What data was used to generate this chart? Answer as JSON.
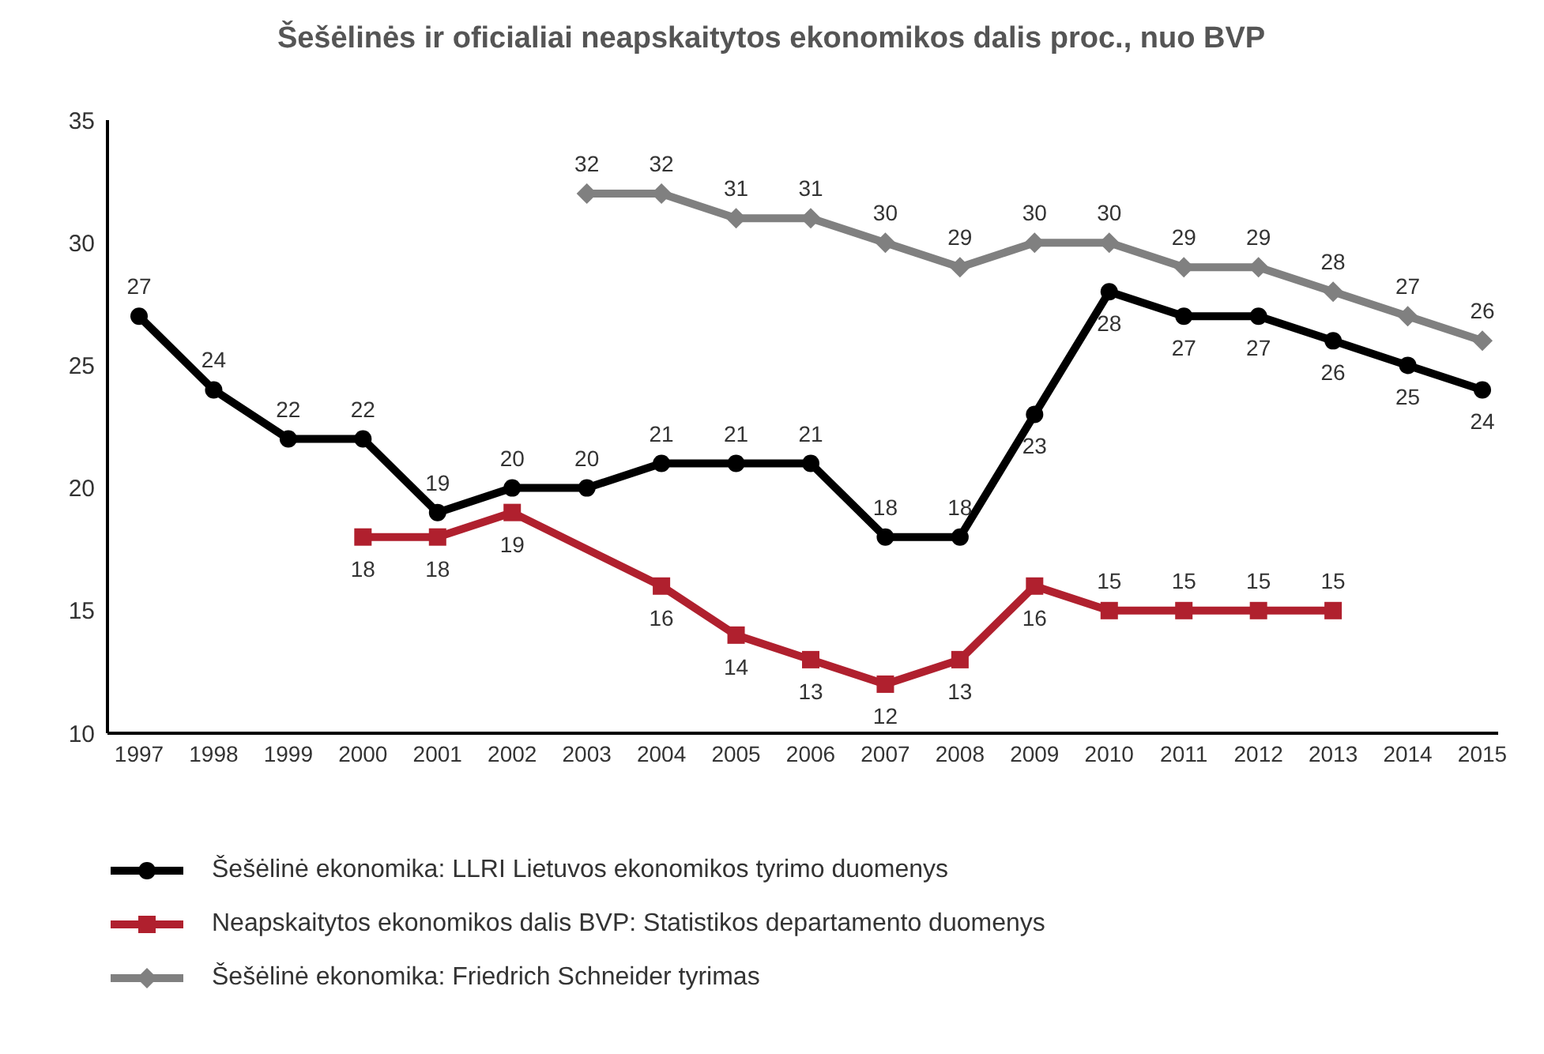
{
  "chart_data": {
    "type": "line",
    "title": "Šešėlinės ir oficialiai neapskaitytos ekonomikos dalis proc., nuo BVP",
    "categories": [
      "1997",
      "1998",
      "1999",
      "2000",
      "2001",
      "2002",
      "2003",
      "2004",
      "2005",
      "2006",
      "2007",
      "2008",
      "2009",
      "2010",
      "2011",
      "2012",
      "2013",
      "2014",
      "2015"
    ],
    "series": [
      {
        "name": "Šešėlinė ekonomika: LLRI Lietuvos ekonomikos tyrimo duomenys",
        "color": "#000000",
        "marker": "circle",
        "values": [
          27,
          24,
          22,
          22,
          19,
          20,
          20,
          21,
          21,
          21,
          18,
          18,
          23,
          28,
          27,
          27,
          26,
          25,
          24
        ]
      },
      {
        "name": "Neapskaitytos ekonomikos dalis BVP: Statistikos departamento duomenys",
        "color": "#b0202e",
        "marker": "square",
        "values": [
          null,
          null,
          null,
          18,
          18,
          19,
          null,
          16,
          14,
          13,
          12,
          13,
          16,
          15,
          15,
          15,
          15,
          null,
          null
        ]
      },
      {
        "name": "Šešėlinė ekonomika: Friedrich Schneider tyrimas",
        "color": "#808080",
        "marker": "diamond",
        "values": [
          null,
          null,
          null,
          null,
          null,
          null,
          32,
          32,
          31,
          31,
          30,
          29,
          30,
          30,
          29,
          29,
          28,
          27,
          26
        ]
      }
    ],
    "ylim": [
      10,
      35
    ],
    "yticks": [
      10,
      15,
      20,
      25,
      30,
      35
    ],
    "grid": false,
    "legend": "bottom",
    "data_labels": true,
    "line_style": "solid"
  }
}
